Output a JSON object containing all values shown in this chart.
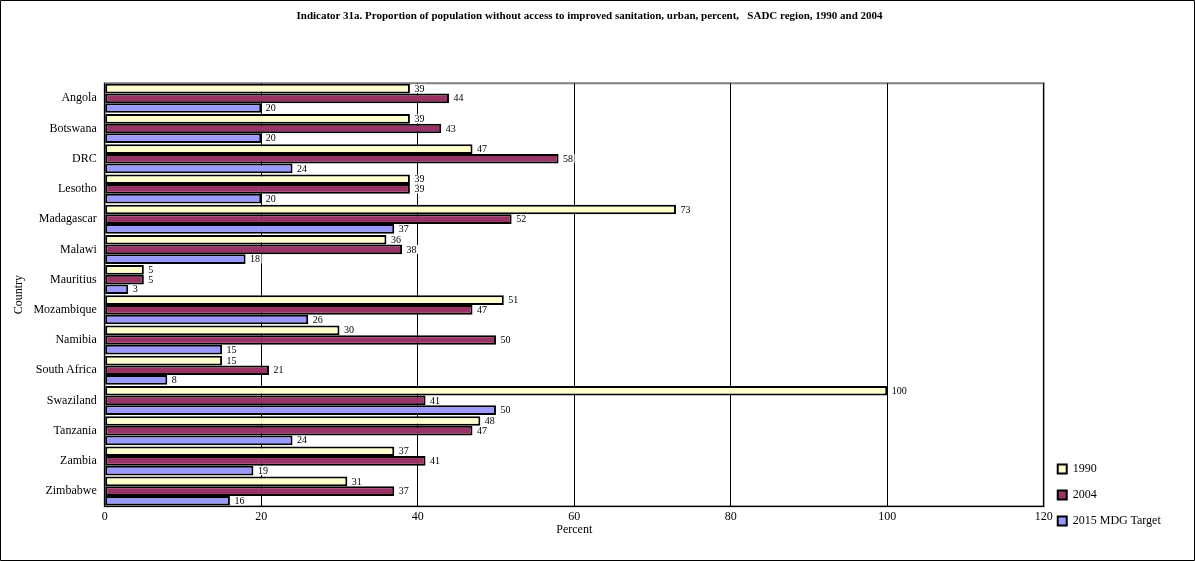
{
  "chart_data": {
    "type": "bar",
    "orientation": "horizontal",
    "title": "Indicator 31a. Proportion of population without access to improved sanitation, urban, percent,   SADC region, 1990 and 2004",
    "xlabel": "Percent",
    "ylabel": "Country",
    "categories": [
      "Angola",
      "Botswana",
      "DRC",
      "Lesotho",
      "Madagascar",
      "Malawi",
      "Mauritius",
      "Mozambique",
      "Namibia",
      "South Africa",
      "Swaziland",
      "Tanzania",
      "Zambia",
      "Zimbabwe"
    ],
    "series": [
      {
        "name": "1990",
        "color": "#ffffcc",
        "values": [
          39,
          39,
          47,
          39,
          73,
          36,
          5,
          51,
          30,
          15,
          100,
          48,
          37,
          31
        ]
      },
      {
        "name": "2004",
        "color": "#993366",
        "values": [
          44,
          43,
          58,
          39,
          52,
          38,
          5,
          47,
          50,
          21,
          41,
          47,
          41,
          37
        ]
      },
      {
        "name": "2015 MDG Target",
        "color": "#9999ff",
        "values": [
          20,
          20,
          24,
          20,
          37,
          18,
          3,
          26,
          15,
          8,
          50,
          24,
          19,
          16
        ]
      }
    ],
    "xlim": [
      0,
      120
    ],
    "xticks": [
      0,
      20,
      40,
      60,
      80,
      100,
      120
    ],
    "grid": "x",
    "legend": "bottom right",
    "data_labels": true
  }
}
